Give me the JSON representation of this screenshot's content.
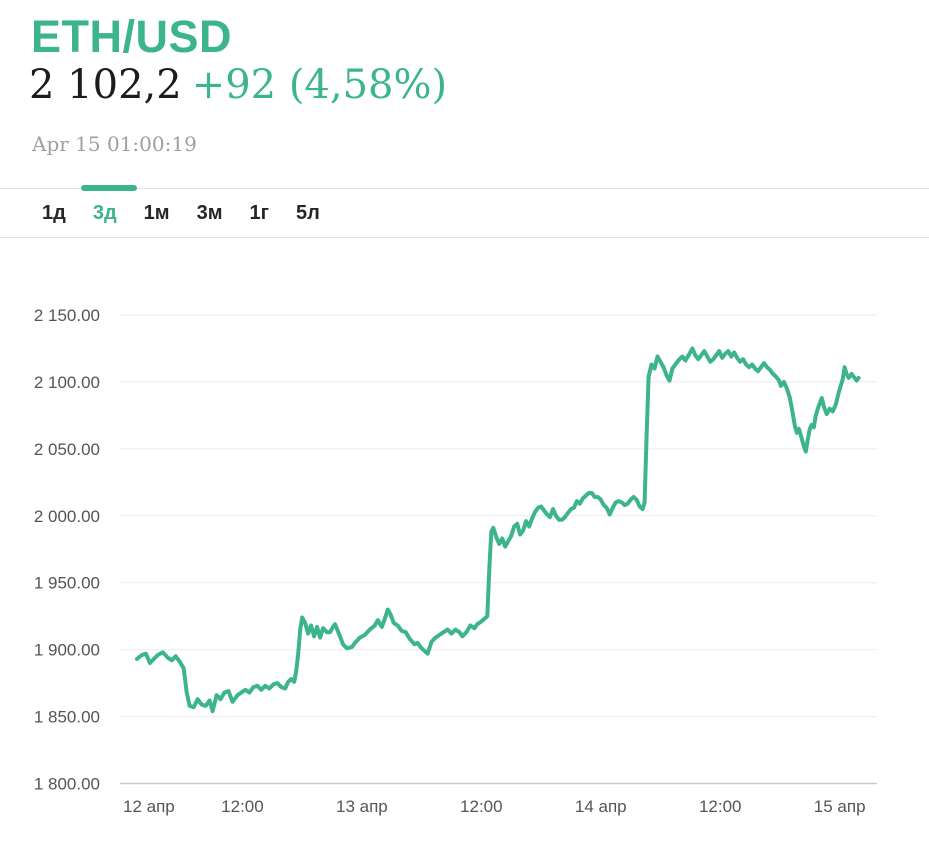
{
  "header": {
    "symbol": "ETH/USD",
    "price": "2 102,2",
    "change": "+92 (4,58%)",
    "timestamp": "Apr 15 01:00:19"
  },
  "tabs": [
    {
      "label": "1д",
      "active": false
    },
    {
      "label": "3д",
      "active": true
    },
    {
      "label": "1м",
      "active": false
    },
    {
      "label": "3м",
      "active": false
    },
    {
      "label": "1г",
      "active": false
    },
    {
      "label": "5л",
      "active": false
    }
  ],
  "colors": {
    "accent": "#3cb48c",
    "line": "#3cb48c",
    "grid": "#ebebeb",
    "axis_line": "#c9c9c9",
    "tick_text": "#555555",
    "price_text": "#1c1c1c",
    "muted_text": "#9f9f9f"
  },
  "chart_data": {
    "type": "line",
    "title": "ETH/USD 3-day price",
    "xlabel": "",
    "ylabel": "",
    "grid": "horizontal",
    "legend": "none",
    "line_width": 4,
    "ylim": [
      1800,
      2150
    ],
    "xlim_hours": [
      -0.3,
      75.75
    ],
    "y_ticks": [
      {
        "value": 2150,
        "label": "2 150.00"
      },
      {
        "value": 2100,
        "label": "2 100.00"
      },
      {
        "value": 2050,
        "label": "2 050.00"
      },
      {
        "value": 2000,
        "label": "2 000.00"
      },
      {
        "value": 1950,
        "label": "1 950.00"
      },
      {
        "value": 1900,
        "label": "1 900.00"
      },
      {
        "value": 1850,
        "label": "1 850.00"
      },
      {
        "value": 1800,
        "label": "1 800.00"
      }
    ],
    "x_ticks": [
      {
        "hour": 0,
        "label": "12 апр",
        "align": "start"
      },
      {
        "hour": 12,
        "label": "12:00",
        "align": "middle"
      },
      {
        "hour": 24,
        "label": "13 апр",
        "align": "middle"
      },
      {
        "hour": 36,
        "label": "12:00",
        "align": "middle"
      },
      {
        "hour": 48,
        "label": "14 апр",
        "align": "middle"
      },
      {
        "hour": 60,
        "label": "12:00",
        "align": "middle"
      },
      {
        "hour": 72,
        "label": "15 апр",
        "align": "middle"
      }
    ],
    "series": [
      {
        "name": "ETH/USD",
        "points": [
          [
            1.4,
            1893
          ],
          [
            1.9,
            1896
          ],
          [
            2.3,
            1897
          ],
          [
            2.7,
            1890
          ],
          [
            3.1,
            1893
          ],
          [
            3.5,
            1896
          ],
          [
            4.0,
            1898
          ],
          [
            4.5,
            1894
          ],
          [
            4.9,
            1892
          ],
          [
            5.3,
            1895
          ],
          [
            5.7,
            1891
          ],
          [
            6.1,
            1886
          ],
          [
            6.4,
            1868
          ],
          [
            6.7,
            1858
          ],
          [
            7.1,
            1857
          ],
          [
            7.5,
            1863
          ],
          [
            7.9,
            1859
          ],
          [
            8.3,
            1858
          ],
          [
            8.7,
            1862
          ],
          [
            9.0,
            1854
          ],
          [
            9.4,
            1866
          ],
          [
            9.8,
            1863
          ],
          [
            10.2,
            1868
          ],
          [
            10.6,
            1869
          ],
          [
            11.0,
            1861
          ],
          [
            11.5,
            1866
          ],
          [
            11.9,
            1868
          ],
          [
            12.3,
            1870
          ],
          [
            12.7,
            1868
          ],
          [
            13.1,
            1872
          ],
          [
            13.5,
            1873
          ],
          [
            13.9,
            1870
          ],
          [
            14.3,
            1873
          ],
          [
            14.7,
            1871
          ],
          [
            15.1,
            1874
          ],
          [
            15.5,
            1875
          ],
          [
            15.9,
            1872
          ],
          [
            16.3,
            1871
          ],
          [
            16.6,
            1876
          ],
          [
            16.9,
            1878
          ],
          [
            17.2,
            1876
          ],
          [
            17.4,
            1884
          ],
          [
            17.6,
            1897
          ],
          [
            17.8,
            1915
          ],
          [
            18.0,
            1924
          ],
          [
            18.3,
            1920
          ],
          [
            18.6,
            1912
          ],
          [
            18.9,
            1918
          ],
          [
            19.2,
            1910
          ],
          [
            19.5,
            1917
          ],
          [
            19.8,
            1909
          ],
          [
            20.1,
            1916
          ],
          [
            20.5,
            1913
          ],
          [
            20.8,
            1913
          ],
          [
            21.1,
            1917
          ],
          [
            21.3,
            1919
          ],
          [
            21.8,
            1910
          ],
          [
            22.1,
            1904
          ],
          [
            22.5,
            1901
          ],
          [
            23.0,
            1902
          ],
          [
            23.3,
            1905
          ],
          [
            23.8,
            1909
          ],
          [
            24.3,
            1911
          ],
          [
            24.8,
            1915
          ],
          [
            25.3,
            1918
          ],
          [
            25.6,
            1922
          ],
          [
            26.0,
            1917
          ],
          [
            26.3,
            1923
          ],
          [
            26.6,
            1930
          ],
          [
            26.9,
            1926
          ],
          [
            27.2,
            1920
          ],
          [
            27.6,
            1918
          ],
          [
            28.0,
            1914
          ],
          [
            28.4,
            1913
          ],
          [
            28.8,
            1908
          ],
          [
            29.3,
            1904
          ],
          [
            29.6,
            1905
          ],
          [
            30.0,
            1901
          ],
          [
            30.6,
            1897
          ],
          [
            31.0,
            1906
          ],
          [
            31.4,
            1909
          ],
          [
            31.8,
            1911
          ],
          [
            32.2,
            1913
          ],
          [
            32.6,
            1915
          ],
          [
            33.0,
            1912
          ],
          [
            33.4,
            1915
          ],
          [
            33.8,
            1913
          ],
          [
            34.1,
            1910
          ],
          [
            34.5,
            1913
          ],
          [
            34.9,
            1918
          ],
          [
            35.3,
            1916
          ],
          [
            35.6,
            1919
          ],
          [
            36.0,
            1921
          ],
          [
            36.6,
            1925
          ],
          [
            36.8,
            1960
          ],
          [
            37.0,
            1988
          ],
          [
            37.2,
            1991
          ],
          [
            37.5,
            1984
          ],
          [
            37.8,
            1979
          ],
          [
            38.1,
            1983
          ],
          [
            38.4,
            1977
          ],
          [
            38.7,
            1981
          ],
          [
            39.0,
            1985
          ],
          [
            39.3,
            1992
          ],
          [
            39.6,
            1994
          ],
          [
            39.9,
            1986
          ],
          [
            40.2,
            1989
          ],
          [
            40.5,
            1996
          ],
          [
            40.8,
            1992
          ],
          [
            41.1,
            1998
          ],
          [
            41.4,
            2003
          ],
          [
            41.7,
            2006
          ],
          [
            42.0,
            2007
          ],
          [
            42.3,
            2004
          ],
          [
            42.6,
            2001
          ],
          [
            42.9,
            1999
          ],
          [
            43.2,
            2005
          ],
          [
            43.5,
            2000
          ],
          [
            43.8,
            1997
          ],
          [
            44.1,
            1997
          ],
          [
            44.4,
            1999
          ],
          [
            44.7,
            2002
          ],
          [
            45.0,
            2005
          ],
          [
            45.3,
            2006
          ],
          [
            45.6,
            2011
          ],
          [
            45.9,
            2009
          ],
          [
            46.2,
            2013
          ],
          [
            46.5,
            2015
          ],
          [
            46.8,
            2017
          ],
          [
            47.1,
            2017
          ],
          [
            47.4,
            2014
          ],
          [
            47.7,
            2014
          ],
          [
            48.0,
            2012
          ],
          [
            48.3,
            2008
          ],
          [
            48.6,
            2006
          ],
          [
            48.9,
            2001
          ],
          [
            49.2,
            2006
          ],
          [
            49.5,
            2010
          ],
          [
            49.8,
            2011
          ],
          [
            50.1,
            2010
          ],
          [
            50.4,
            2008
          ],
          [
            50.7,
            2009
          ],
          [
            51.0,
            2012
          ],
          [
            51.3,
            2014
          ],
          [
            51.6,
            2012
          ],
          [
            51.9,
            2007
          ],
          [
            52.2,
            2005
          ],
          [
            52.4,
            2010
          ],
          [
            52.6,
            2060
          ],
          [
            52.8,
            2104
          ],
          [
            53.1,
            2113
          ],
          [
            53.4,
            2110
          ],
          [
            53.7,
            2119
          ],
          [
            54.0,
            2115
          ],
          [
            54.3,
            2111
          ],
          [
            54.6,
            2105
          ],
          [
            54.9,
            2101
          ],
          [
            55.2,
            2110
          ],
          [
            55.5,
            2113
          ],
          [
            55.9,
            2117
          ],
          [
            56.2,
            2119
          ],
          [
            56.5,
            2116
          ],
          [
            56.9,
            2121
          ],
          [
            57.2,
            2125
          ],
          [
            57.5,
            2120
          ],
          [
            57.8,
            2117
          ],
          [
            58.1,
            2120
          ],
          [
            58.4,
            2123
          ],
          [
            58.7,
            2119
          ],
          [
            59.0,
            2115
          ],
          [
            59.3,
            2117
          ],
          [
            59.6,
            2120
          ],
          [
            59.9,
            2123
          ],
          [
            60.2,
            2118
          ],
          [
            60.5,
            2121
          ],
          [
            60.8,
            2123
          ],
          [
            61.1,
            2119
          ],
          [
            61.4,
            2122
          ],
          [
            61.7,
            2118
          ],
          [
            62.0,
            2115
          ],
          [
            62.3,
            2117
          ],
          [
            62.6,
            2113
          ],
          [
            62.9,
            2111
          ],
          [
            63.2,
            2113
          ],
          [
            63.5,
            2110
          ],
          [
            63.8,
            2108
          ],
          [
            64.1,
            2111
          ],
          [
            64.4,
            2114
          ],
          [
            64.7,
            2111
          ],
          [
            65.0,
            2109
          ],
          [
            65.3,
            2106
          ],
          [
            65.6,
            2104
          ],
          [
            65.9,
            2101
          ],
          [
            66.1,
            2097
          ],
          [
            66.4,
            2100
          ],
          [
            66.7,
            2095
          ],
          [
            67.0,
            2088
          ],
          [
            67.2,
            2080
          ],
          [
            67.5,
            2067
          ],
          [
            67.7,
            2062
          ],
          [
            67.9,
            2065
          ],
          [
            68.1,
            2060
          ],
          [
            68.4,
            2052
          ],
          [
            68.6,
            2048
          ],
          [
            68.8,
            2057
          ],
          [
            69.0,
            2065
          ],
          [
            69.2,
            2068
          ],
          [
            69.4,
            2066
          ],
          [
            69.6,
            2075
          ],
          [
            69.8,
            2080
          ],
          [
            70.0,
            2084
          ],
          [
            70.2,
            2088
          ],
          [
            70.4,
            2082
          ],
          [
            70.7,
            2076
          ],
          [
            71.0,
            2080
          ],
          [
            71.3,
            2078
          ],
          [
            71.6,
            2083
          ],
          [
            71.9,
            2092
          ],
          [
            72.1,
            2097
          ],
          [
            72.3,
            2102
          ],
          [
            72.5,
            2111
          ],
          [
            72.7,
            2106
          ],
          [
            72.9,
            2103
          ],
          [
            73.2,
            2106
          ],
          [
            73.4,
            2104
          ],
          [
            73.7,
            2101
          ],
          [
            73.9,
            2103
          ]
        ]
      }
    ]
  }
}
